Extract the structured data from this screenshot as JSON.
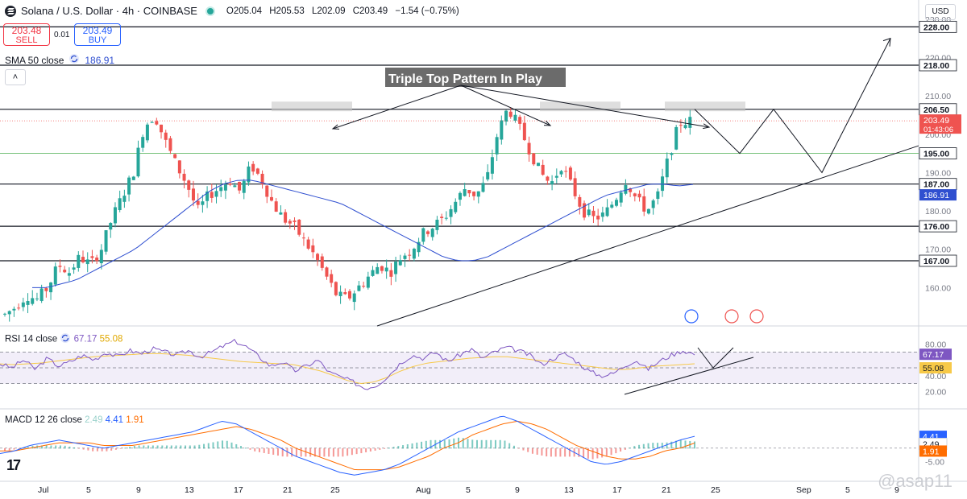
{
  "header": {
    "title": "Solana / U.S. Dollar · 4h · COINBASE",
    "ohlc": {
      "open": "O205.04",
      "high": "H205.53",
      "low": "L202.09",
      "close": "C203.49",
      "change": "−1.54 (−0.75%)"
    },
    "sell_price": "203.48",
    "sell_label": "SELL",
    "buy_price": "203.49",
    "buy_label": "BUY",
    "spread": "0.01",
    "sma_label": "SMA 50 close",
    "sma_value": "186.91",
    "currency": "USD"
  },
  "colors": {
    "up": "#26a69a",
    "down": "#ef5350",
    "sma": "#2f4fd0",
    "rsi": "#7e57c2",
    "rsi_ma": "#f7c948",
    "macd": "#2962ff",
    "signal": "#ff6d00"
  },
  "chart_data": [
    {
      "type": "candlestick",
      "title": "Triple Top Pattern In Play",
      "ylim": [
        150,
        235
      ],
      "y_ticks": [
        160.0,
        170.0,
        180.0,
        190.0,
        200.0,
        210.0,
        220.0,
        230.0
      ],
      "x_ticks": [
        "Jul",
        "5",
        "9",
        "13",
        "17",
        "21",
        "25",
        "Aug",
        "5",
        "9",
        "13",
        "17",
        "21",
        "25",
        "Sep",
        "5",
        "9"
      ],
      "levels": [
        228.0,
        218.0,
        206.5,
        195.0,
        187.0,
        176.0,
        167.0
      ],
      "last_price": {
        "value": "203.49",
        "countdown": "01:43:06"
      },
      "sma50_last": "186.91",
      "price_path": [
        153,
        155,
        158,
        157,
        160,
        166,
        164,
        168,
        166,
        170,
        178,
        184,
        190,
        202,
        205,
        198,
        192,
        187,
        180,
        184,
        186,
        188,
        185,
        192,
        188,
        182,
        178,
        176,
        172,
        168,
        163,
        158,
        157,
        160,
        163,
        166,
        164,
        168,
        170,
        174,
        176,
        178,
        182,
        186,
        184,
        188,
        200,
        207,
        202,
        196,
        190,
        187,
        192,
        186,
        180,
        178,
        179,
        183,
        188,
        183,
        180,
        184,
        194,
        203,
        203.49
      ],
      "sma_path": [
        160,
        160,
        161,
        162,
        164,
        166,
        168,
        170,
        173,
        176,
        179,
        182,
        185,
        187,
        188,
        188,
        187,
        186,
        185,
        184,
        183,
        182,
        180,
        178,
        176,
        174,
        172,
        170,
        168,
        167,
        167,
        168,
        170,
        172,
        174,
        176,
        178,
        180,
        182,
        184,
        185,
        186,
        187,
        187,
        186.5,
        186.91
      ],
      "projection_path": [
        206.5,
        195,
        206.5,
        190,
        225
      ],
      "support_trendline": [
        150,
        195
      ]
    },
    {
      "type": "line",
      "name": "RSI",
      "label": "RSI 14 close",
      "values_shown": {
        "rsi": "67.17",
        "rsi_ma": "55.08"
      },
      "ylim": [
        0,
        100
      ],
      "y_ticks": [
        "80.00",
        "40.00",
        "20.00"
      ],
      "bands": [
        70,
        50,
        30
      ],
      "rsi_path": [
        55,
        50,
        60,
        48,
        62,
        52,
        58,
        66,
        60,
        70,
        64,
        72,
        68,
        74,
        70,
        66,
        72,
        64,
        70,
        78,
        84,
        76,
        64,
        52,
        58,
        46,
        52,
        60,
        44,
        38,
        32,
        24,
        28,
        40,
        56,
        66,
        62,
        70,
        58,
        66,
        74,
        62,
        70,
        76,
        72,
        66,
        54,
        62,
        68,
        58,
        46,
        40,
        42,
        52,
        60,
        48,
        58,
        66,
        72,
        67.17
      ],
      "rsi_ma_path": [
        55,
        54,
        55,
        56,
        58,
        60,
        62,
        64,
        65,
        66,
        67,
        68,
        68,
        67,
        66,
        64,
        62,
        60,
        58,
        57,
        56,
        55,
        54,
        50,
        46,
        40,
        34,
        30,
        32,
        38,
        46,
        52,
        56,
        58,
        60,
        62,
        63,
        64,
        64,
        62,
        60,
        58,
        56,
        54,
        52,
        50,
        48,
        48,
        50,
        52,
        53,
        54,
        55.08
      ]
    },
    {
      "type": "bar",
      "name": "MACD",
      "label": "MACD 12 26 close",
      "values_shown": {
        "hist": "2.49",
        "macd": "4.41",
        "signal": "1.91"
      },
      "y_ticks": [
        "-5.00"
      ],
      "macd_path": [
        -2,
        -1,
        1,
        2,
        3,
        2,
        1,
        0,
        1,
        2,
        3,
        4,
        5,
        6,
        8,
        10,
        9,
        6,
        3,
        0,
        -3,
        -5,
        -7,
        -9,
        -10,
        -9,
        -8,
        -6,
        -3,
        0,
        3,
        6,
        8,
        10,
        12,
        10,
        7,
        4,
        1,
        -2,
        -5,
        -6,
        -5,
        -3,
        -1,
        1,
        3,
        4.41
      ],
      "signal_path": [
        -1,
        -1,
        0,
        1,
        2,
        2,
        2,
        1,
        1,
        1,
        2,
        3,
        4,
        5,
        6,
        7,
        8,
        7,
        5,
        3,
        0,
        -2,
        -4,
        -6,
        -8,
        -8,
        -8,
        -7,
        -5,
        -3,
        0,
        2,
        5,
        7,
        9,
        10,
        9,
        7,
        4,
        1,
        -1,
        -3,
        -4,
        -4,
        -3,
        -1,
        0,
        1.91
      ]
    }
  ],
  "watermark": "@asap11"
}
